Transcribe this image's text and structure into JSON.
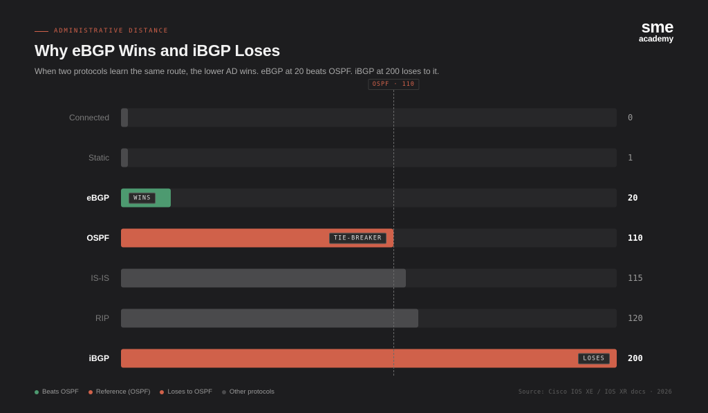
{
  "header": {
    "eyebrow": "ADMINISTRATIVE DISTANCE",
    "title": "Why eBGP Wins and iBGP Loses",
    "subtitle": "When two protocols learn the same route, the lower AD wins. eBGP at 20 beats OSPF. iBGP at 200 loses to it."
  },
  "logo": {
    "big": "sme",
    "small": "academy"
  },
  "colors": {
    "beats": "#4d9a70",
    "reference": "#d0614a",
    "loses": "#d0614a",
    "other": "#4a4a4c",
    "track": "#272729"
  },
  "chart_data": {
    "type": "bar",
    "orientation": "horizontal",
    "categories": [
      "Connected",
      "Static",
      "eBGP",
      "OSPF",
      "IS-IS",
      "RIP",
      "iBGP"
    ],
    "values": [
      0,
      1,
      20,
      110,
      115,
      120,
      200
    ],
    "value_labels": [
      "0",
      "1",
      "20",
      "110",
      "115",
      "120",
      "200"
    ],
    "groups": [
      "other",
      "other",
      "beats",
      "reference",
      "other",
      "other",
      "loses"
    ],
    "highlight": [
      false,
      false,
      true,
      true,
      false,
      false,
      true
    ],
    "bar_tags": [
      "",
      "",
      "WINS",
      "TIE-BREAKER",
      "",
      "",
      "LOSES"
    ],
    "xlim": [
      0,
      200
    ],
    "reference_line": {
      "value": 110,
      "label": "OSPF · 110"
    },
    "legend": [
      {
        "label": "Beats OSPF",
        "group": "beats"
      },
      {
        "label": "Reference (OSPF)",
        "group": "reference"
      },
      {
        "label": "Loses to OSPF",
        "group": "loses"
      },
      {
        "label": "Other protocols",
        "group": "other"
      }
    ],
    "source": "Source: Cisco IOS XE / IOS XR docs · 2026"
  }
}
